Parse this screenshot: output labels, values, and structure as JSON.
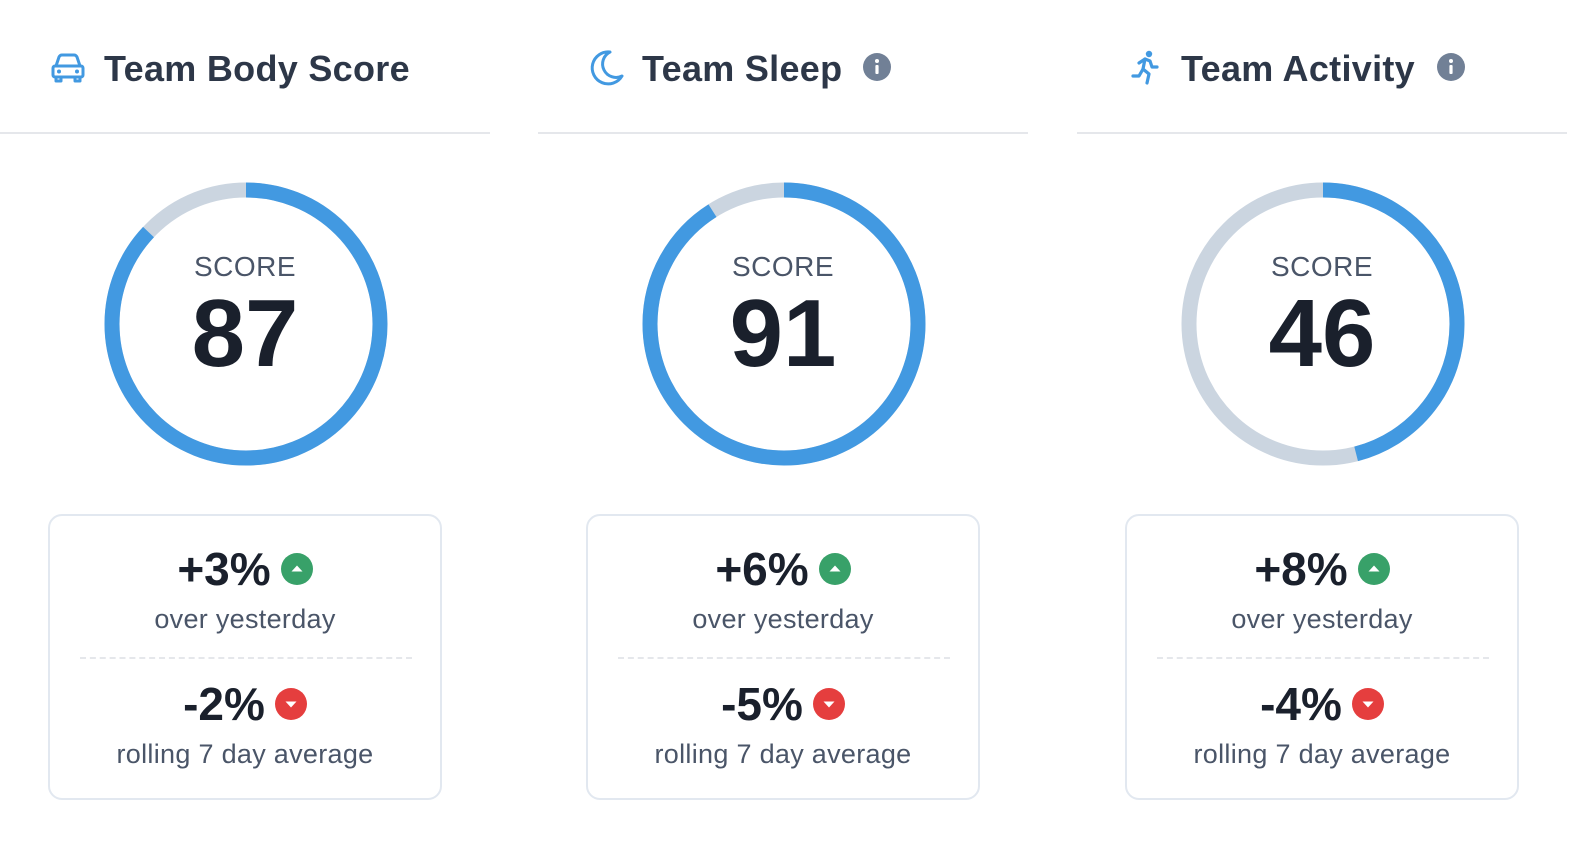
{
  "colors": {
    "accent": "#4299e1",
    "track": "#cbd5e0",
    "up": "#38a169",
    "down": "#e53e3e"
  },
  "panels": [
    {
      "title": "Team Body Score",
      "icon": "car-icon",
      "has_info": false,
      "score_label": "SCORE",
      "score": "87",
      "progress": 0.87,
      "over_yesterday": {
        "value": "+3%",
        "caption": "over yesterday",
        "trend": "up"
      },
      "rolling": {
        "value": "-2%",
        "caption": "rolling 7 day average",
        "trend": "down"
      }
    },
    {
      "title": "Team Sleep",
      "icon": "moon-icon",
      "has_info": true,
      "score_label": "SCORE",
      "score": "91",
      "progress": 0.91,
      "over_yesterday": {
        "value": "+6%",
        "caption": "over yesterday",
        "trend": "up"
      },
      "rolling": {
        "value": "-5%",
        "caption": "rolling 7 day average",
        "trend": "down"
      }
    },
    {
      "title": "Team Activity",
      "icon": "running-person-icon",
      "has_info": true,
      "score_label": "SCORE",
      "score": "46",
      "progress": 0.46,
      "over_yesterday": {
        "value": "+8%",
        "caption": "over yesterday",
        "trend": "up"
      },
      "rolling": {
        "value": "-4%",
        "caption": "rolling 7 day average",
        "trend": "down"
      }
    }
  ]
}
